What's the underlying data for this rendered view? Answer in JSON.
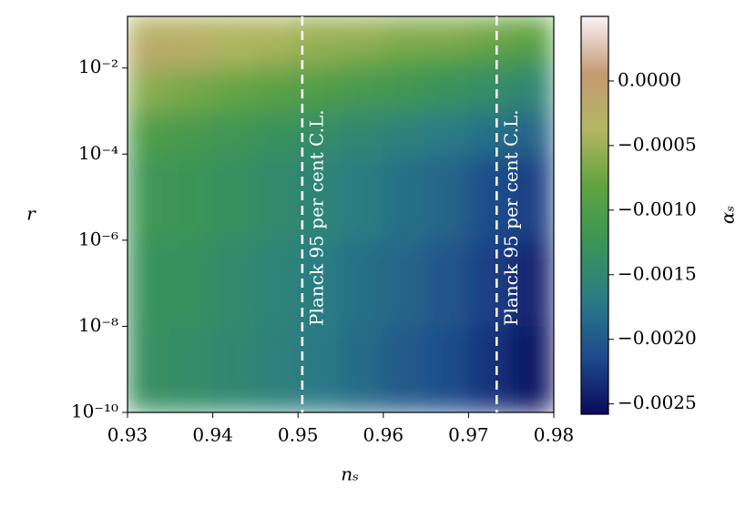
{
  "chart_data": {
    "type": "heatmap",
    "x_label": "nₛ",
    "y_label": "r",
    "colorbar_label": "αₛ",
    "x_bins": [
      0.93,
      0.935,
      0.94,
      0.945,
      0.95,
      0.955,
      0.96,
      0.965,
      0.97,
      0.975,
      0.98
    ],
    "y_bins": [
      1e-10,
      1e-08,
      1e-06,
      0.0001,
      0.001,
      0.01,
      0.03,
      0.158
    ],
    "values": [
      [
        -0.00135,
        -0.0014,
        -0.0015,
        -0.0016,
        -0.00172,
        -0.00185,
        -0.002,
        -0.0021,
        -0.0023,
        -0.0025
      ],
      [
        -0.0013,
        -0.00135,
        -0.00145,
        -0.00155,
        -0.00167,
        -0.0018,
        -0.0019,
        -0.00205,
        -0.0022,
        -0.0024
      ],
      [
        -0.0012,
        -0.00125,
        -0.00135,
        -0.00145,
        -0.00155,
        -0.00167,
        -0.0018,
        -0.0019,
        -0.0021,
        -0.0022
      ],
      [
        -0.001,
        -0.0011,
        -0.0012,
        -0.0013,
        -0.0014,
        -0.0015,
        -0.0016,
        -0.0017,
        -0.0018,
        -0.0019
      ],
      [
        -0.0006,
        -0.0007,
        -0.0008,
        -0.0009,
        -0.001,
        -0.0011,
        -0.0012,
        -0.0013,
        -0.0014,
        -0.0015
      ],
      [
        -0.0001,
        -0.0002,
        -0.0004,
        -0.0005,
        -0.0006,
        -0.0007,
        -0.0008,
        -0.0009,
        -0.001,
        -0.0011
      ],
      [
        -0.0003,
        -0.0003,
        -0.0004,
        -0.0004,
        -0.0005,
        -0.0005,
        -0.0006,
        -0.0006,
        -0.0007,
        -0.0008
      ]
    ],
    "xlim": [
      0.93,
      0.98
    ],
    "xticks": [
      0.93,
      0.94,
      0.95,
      0.96,
      0.97,
      0.98
    ],
    "ylim": [
      1e-10,
      0.158
    ],
    "y_scale": "log",
    "yticks": [
      {
        "value": 1e-10,
        "label": "10⁻¹⁰"
      },
      {
        "value": 1e-08,
        "label": "10⁻⁸"
      },
      {
        "value": 1e-06,
        "label": "10⁻⁶"
      },
      {
        "value": 0.0001,
        "label": "10⁻⁴"
      },
      {
        "value": 0.01,
        "label": "10⁻²"
      }
    ],
    "clim": [
      -0.00258,
      0.0005
    ],
    "cticks": [
      {
        "value": 0,
        "label": "0.0000"
      },
      {
        "value": -0.0005,
        "label": "−0.0005"
      },
      {
        "value": -0.001,
        "label": "−0.0010"
      },
      {
        "value": -0.0015,
        "label": "−0.0015"
      },
      {
        "value": -0.002,
        "label": "−0.0020"
      },
      {
        "value": -0.0025,
        "label": "−0.0025"
      }
    ],
    "colormap": [
      "#0a0a5c",
      "#1e4a8c",
      "#2a7b86",
      "#3a9458",
      "#5fa340",
      "#b3b662",
      "#c49a72",
      "#fbf3f8"
    ],
    "vlines": [
      {
        "x": 0.9505,
        "label": "Planck 95 per cent C.L."
      },
      {
        "x": 0.9733,
        "label": "Planck 95 per cent C.L."
      }
    ],
    "vline_color": "#ffffff"
  }
}
